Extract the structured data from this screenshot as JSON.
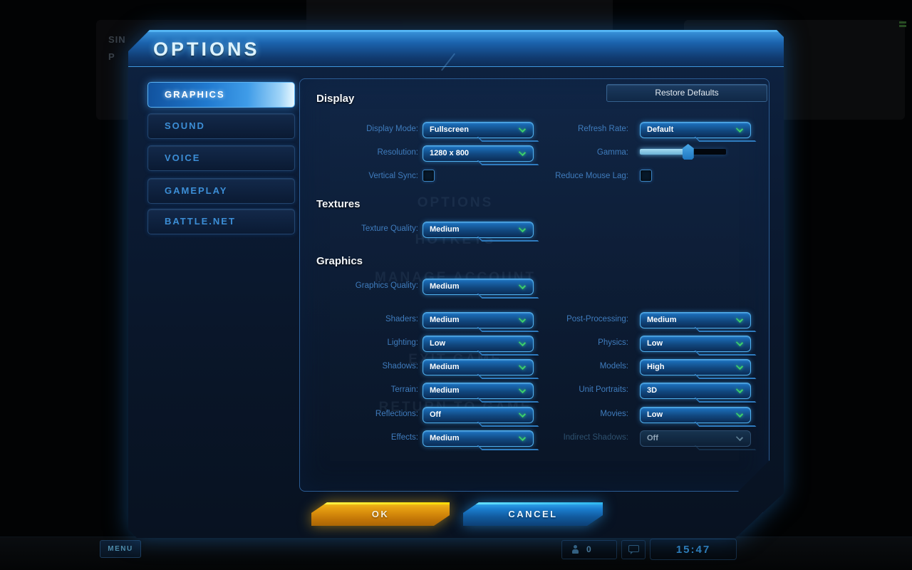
{
  "dialog": {
    "title": "OPTIONS",
    "restore_defaults": "Restore Defaults",
    "ok": "OK",
    "cancel": "CANCEL"
  },
  "sidebar": {
    "items": [
      {
        "label": "GRAPHICS",
        "active": true
      },
      {
        "label": "SOUND",
        "active": false
      },
      {
        "label": "VOICE",
        "active": false
      },
      {
        "label": "GAMEPLAY",
        "active": false
      },
      {
        "label": "BATTLE.NET",
        "active": false
      }
    ]
  },
  "sections": {
    "display": "Display",
    "textures": "Textures",
    "graphics": "Graphics"
  },
  "display": {
    "mode_label": "Display Mode:",
    "mode_value": "Fullscreen",
    "resolution_label": "Resolution:",
    "resolution_value": "1280 x 800",
    "vsync_label": "Vertical Sync:",
    "vsync_checked": false,
    "refresh_label": "Refresh Rate:",
    "refresh_value": "Default",
    "gamma_label": "Gamma:",
    "gamma_percent": 56,
    "mouselag_label": "Reduce Mouse Lag:",
    "mouselag_checked": false
  },
  "textures": {
    "quality_label": "Texture Quality:",
    "quality_value": "Medium"
  },
  "graphics": {
    "quality_label": "Graphics Quality:",
    "quality_value": "Medium",
    "left_rows": [
      {
        "label": "Shaders:",
        "value": "Medium"
      },
      {
        "label": "Lighting:",
        "value": "Low"
      },
      {
        "label": "Shadows:",
        "value": "Medium"
      },
      {
        "label": "Terrain:",
        "value": "Medium"
      },
      {
        "label": "Reflections:",
        "value": "Off"
      },
      {
        "label": "Effects:",
        "value": "Medium"
      }
    ],
    "right_rows": [
      {
        "label": "Post-Processing:",
        "value": "Medium",
        "disabled": false
      },
      {
        "label": "Physics:",
        "value": "Low",
        "disabled": false
      },
      {
        "label": "Models:",
        "value": "High",
        "disabled": false
      },
      {
        "label": "Unit Portraits:",
        "value": "3D",
        "disabled": false
      },
      {
        "label": "Movies:",
        "value": "Low",
        "disabled": false
      },
      {
        "label": "Indirect Shadows:",
        "value": "Off",
        "disabled": true
      }
    ]
  },
  "taskbar": {
    "menu": "MENU",
    "friends_count": "0",
    "clock": "15:47"
  },
  "background": {
    "ghost_menu": [
      "OPTIONS",
      "HOTKEYS",
      "MANAGE ACCOUNT",
      "EXIT GAME",
      "RETURN TO GAME"
    ],
    "fragments": [
      "SIN",
      "P"
    ]
  }
}
